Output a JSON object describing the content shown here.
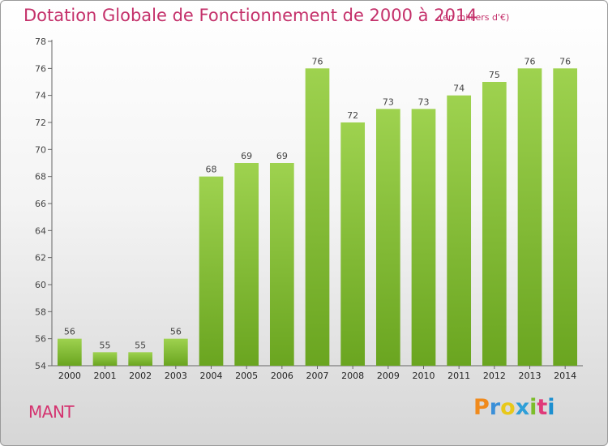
{
  "chart_data": {
    "type": "bar",
    "title": "Dotation Globale de Fonctionnement de 2000 à 2014",
    "subtitle": "(en milliers d'€)",
    "categories": [
      "2000",
      "2001",
      "2002",
      "2003",
      "2004",
      "2005",
      "2006",
      "2007",
      "2008",
      "2009",
      "2010",
      "2011",
      "2012",
      "2013",
      "2014"
    ],
    "values": [
      56,
      55,
      55,
      56,
      68,
      69,
      69,
      76,
      72,
      73,
      73,
      74,
      75,
      76,
      76
    ],
    "ylim": [
      54,
      78
    ],
    "yticks": [
      54,
      56,
      58,
      60,
      62,
      64,
      66,
      68,
      70,
      72,
      74,
      76,
      78
    ],
    "grid": false,
    "colors": {
      "bar_top": "#9ed24f",
      "bar_bottom": "#6aa520",
      "axis": "#666666",
      "label": "#444444"
    }
  },
  "footer": {
    "commune": "MANT",
    "logo": "Proxiti",
    "logo_colors": [
      "#f08a1c",
      "#3a8fd8",
      "#e8c81a",
      "#2f9fd8",
      "#7cbd2a",
      "#e03a7a",
      "#1c8fd0"
    ]
  }
}
